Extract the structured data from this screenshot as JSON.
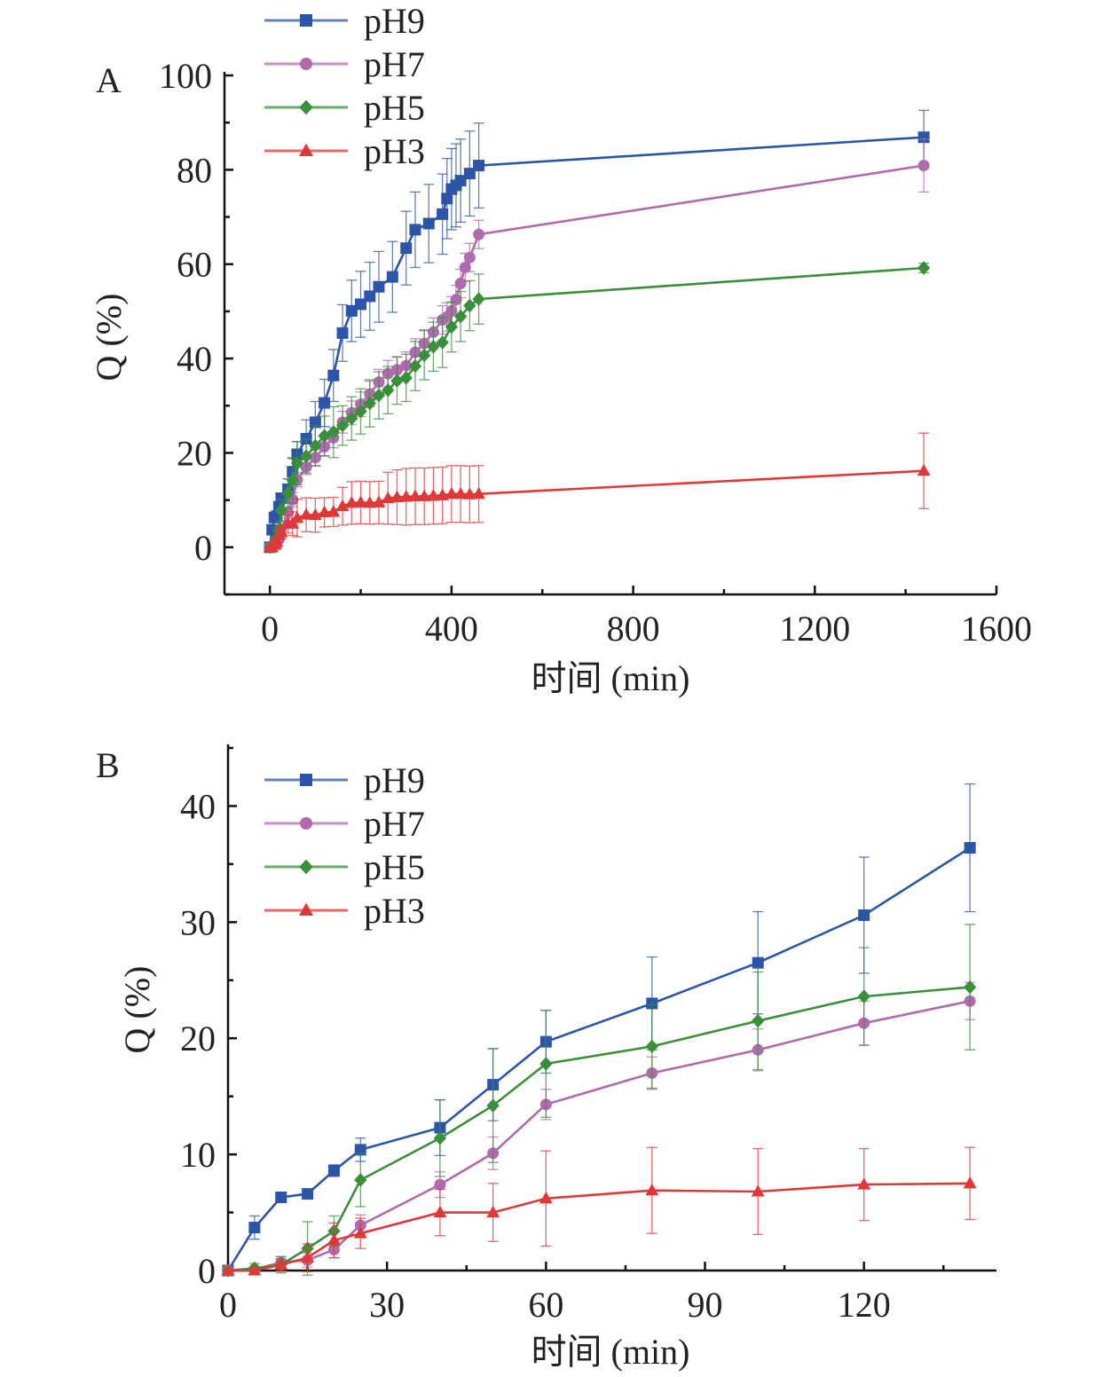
{
  "chart_data": [
    {
      "panel": "A",
      "type": "line",
      "xlabel": "时间 (min)",
      "ylabel": "Q (%)",
      "xlim": [
        -100,
        1600
      ],
      "ylim": [
        -10,
        100
      ],
      "xticks": [
        0,
        400,
        800,
        1200,
        1600
      ],
      "yticks": [
        0,
        20,
        40,
        60,
        80,
        100
      ],
      "legend_position": "top-left-outside",
      "series": [
        {
          "name": "pH9",
          "color": "#2c55a8",
          "marker": "square",
          "x": [
            0,
            5,
            10,
            15,
            20,
            25,
            40,
            50,
            60,
            80,
            100,
            120,
            140,
            160,
            180,
            200,
            220,
            240,
            270,
            300,
            320,
            350,
            380,
            390,
            400,
            410,
            420,
            440,
            460,
            1440
          ],
          "y": [
            0,
            3.7,
            6.3,
            6.6,
            8.6,
            10.4,
            12.3,
            16,
            19.7,
            23,
            26.5,
            30.6,
            36.4,
            45.4,
            50.1,
            51.5,
            53.2,
            55.2,
            57.3,
            63.4,
            67.3,
            68.6,
            70.6,
            73.9,
            75.9,
            76.7,
            77.7,
            79.2,
            80.9,
            86.9
          ],
          "err": [
            0,
            1,
            0.5,
            0.5,
            0.6,
            1,
            2.2,
            2.8,
            2.7,
            4,
            4.4,
            5,
            5.5,
            6,
            6.5,
            7,
            7.2,
            7.5,
            7.5,
            7.8,
            8,
            8.3,
            8.5,
            8.5,
            8.6,
            8.8,
            8.8,
            9,
            9,
            5.7
          ]
        },
        {
          "name": "pH7",
          "color": "#b06aae",
          "marker": "circle",
          "x": [
            0,
            5,
            10,
            15,
            20,
            25,
            40,
            50,
            60,
            80,
            100,
            120,
            140,
            160,
            180,
            200,
            220,
            240,
            260,
            280,
            300,
            320,
            340,
            360,
            380,
            390,
            400,
            410,
            420,
            430,
            440,
            460,
            1440
          ],
          "y": [
            0,
            0.1,
            0.7,
            0.9,
            1.8,
            3.9,
            7.4,
            10.1,
            14.3,
            17,
            19,
            21.3,
            23.2,
            26.5,
            28.5,
            30.3,
            32.5,
            35,
            36.8,
            37.6,
            38.5,
            41.3,
            43.2,
            45.6,
            48.2,
            48.8,
            50.1,
            52.5,
            55.9,
            59.3,
            61.4,
            66.3,
            80.9
          ],
          "err": [
            0,
            0.2,
            0.5,
            0.6,
            0.7,
            0.9,
            1.2,
            1.5,
            1.5,
            1.6,
            1.8,
            2,
            2.1,
            2.3,
            2.5,
            2.6,
            2.7,
            2.7,
            2.8,
            2.8,
            2.9,
            2.9,
            2.9,
            3,
            3,
            3,
            3,
            3,
            3,
            3,
            3,
            3,
            5.6
          ]
        },
        {
          "name": "pH5",
          "color": "#3a8f3a",
          "marker": "diamond",
          "x": [
            0,
            5,
            10,
            15,
            20,
            25,
            40,
            50,
            60,
            80,
            100,
            120,
            140,
            160,
            180,
            200,
            220,
            240,
            260,
            280,
            300,
            320,
            340,
            360,
            380,
            400,
            420,
            440,
            460,
            1440
          ],
          "y": [
            0,
            0.2,
            0.5,
            1.9,
            3.4,
            7.8,
            11.4,
            14.2,
            17.8,
            19.3,
            21.5,
            23.6,
            24.4,
            25.8,
            27.3,
            28.8,
            30.5,
            32.2,
            33.3,
            35.3,
            35.9,
            38.4,
            40.7,
            42.5,
            43.4,
            46.7,
            48.9,
            51.2,
            52.6,
            59.2
          ],
          "err": [
            0,
            0.4,
            0.7,
            2.3,
            1.3,
            2.3,
            3.1,
            4.8,
            4.6,
            3.6,
            4.2,
            4.2,
            5.4,
            4.2,
            4.6,
            4.8,
            5,
            5,
            5,
            5,
            5,
            5.2,
            5.2,
            5.2,
            5.3,
            5.3,
            5.3,
            5.3,
            5.3,
            1
          ]
        },
        {
          "name": "pH3",
          "color": "#e03838",
          "marker": "triangle",
          "x": [
            0,
            5,
            10,
            15,
            20,
            25,
            40,
            50,
            60,
            80,
            100,
            120,
            140,
            160,
            180,
            200,
            220,
            240,
            260,
            280,
            300,
            320,
            340,
            360,
            380,
            400,
            420,
            440,
            460,
            1440
          ],
          "y": [
            0,
            0,
            0.5,
            1.1,
            2.6,
            3.2,
            5,
            5,
            6.2,
            6.9,
            6.8,
            7.4,
            7.5,
            8.7,
            9.4,
            9.5,
            9.4,
            9.5,
            10.4,
            10.6,
            10.7,
            10.8,
            10.8,
            10.9,
            11,
            11.3,
            11.3,
            11.2,
            11.3,
            16.2
          ],
          "err": [
            0,
            0,
            0.5,
            1.2,
            1.5,
            1.3,
            2,
            2.5,
            4,
            3.6,
            3.6,
            3.1,
            3.1,
            4,
            4.5,
            4.5,
            4.5,
            4.5,
            5.5,
            5.8,
            6,
            6,
            6,
            6,
            6,
            6,
            6,
            6,
            6,
            8
          ]
        }
      ]
    },
    {
      "panel": "B",
      "type": "line",
      "xlabel": "时间 (min)",
      "ylabel": "Q (%)",
      "xlim": [
        0,
        145
      ],
      "ylim": [
        0,
        45
      ],
      "xticks": [
        0,
        30,
        60,
        90,
        120
      ],
      "yticks": [
        0,
        10,
        20,
        30,
        40
      ],
      "legend_position": "top-left",
      "series": [
        {
          "name": "pH9",
          "color": "#2c55a8",
          "marker": "square",
          "x": [
            0,
            5,
            10,
            15,
            20,
            25,
            40,
            50,
            60,
            80,
            100,
            120,
            140
          ],
          "y": [
            0,
            3.7,
            6.3,
            6.6,
            8.6,
            10.4,
            12.3,
            16,
            19.7,
            23,
            26.5,
            30.6,
            36.4
          ],
          "err": [
            0,
            1,
            0.4,
            0.4,
            0.5,
            1,
            2.4,
            3.1,
            2.7,
            4,
            4.4,
            5,
            5.5
          ]
        },
        {
          "name": "pH7",
          "color": "#b06aae",
          "marker": "circle",
          "x": [
            0,
            5,
            10,
            15,
            20,
            25,
            40,
            50,
            60,
            80,
            100,
            120,
            140
          ],
          "y": [
            0,
            0.1,
            0.7,
            0.9,
            1.8,
            3.9,
            7.4,
            10.1,
            14.3,
            17,
            19,
            21.3,
            23.2
          ],
          "err": [
            0,
            0.2,
            0.5,
            0.6,
            0.7,
            0.9,
            1.1,
            1.4,
            1.3,
            1.4,
            1.8,
            1.9,
            1.6
          ]
        },
        {
          "name": "pH5",
          "color": "#3a8f3a",
          "marker": "diamond",
          "x": [
            0,
            5,
            10,
            15,
            20,
            25,
            40,
            50,
            60,
            80,
            100,
            120,
            140
          ],
          "y": [
            0,
            0.2,
            0.5,
            1.9,
            3.4,
            7.8,
            11.4,
            14.2,
            17.8,
            19.3,
            21.5,
            23.6,
            24.4
          ],
          "err": [
            0,
            0.4,
            0.7,
            2.3,
            1.3,
            2.3,
            3.3,
            4.9,
            4.6,
            3.6,
            4.2,
            4.2,
            5.4
          ]
        },
        {
          "name": "pH3",
          "color": "#e03838",
          "marker": "triangle",
          "x": [
            0,
            5,
            10,
            15,
            20,
            25,
            40,
            50,
            60,
            80,
            100,
            120,
            140
          ],
          "y": [
            0,
            0,
            0.5,
            1.1,
            2.6,
            3.2,
            5,
            5,
            6.2,
            6.9,
            6.8,
            7.4,
            7.5
          ],
          "err": [
            0,
            0,
            0.5,
            1.2,
            1.5,
            1.3,
            2,
            2.5,
            4.1,
            3.7,
            3.7,
            3.1,
            3.1
          ]
        }
      ]
    }
  ]
}
